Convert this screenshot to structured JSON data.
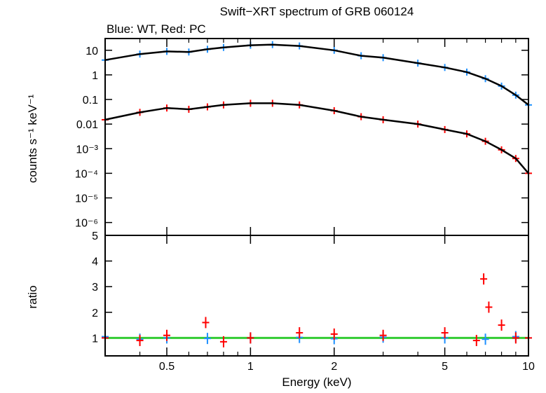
{
  "title": "Swift−XRT spectrum of GRB 060124",
  "subtitle": "Blue: WT, Red: PC",
  "chart_data": [
    {
      "type": "scatter",
      "panel": "spectrum",
      "xlabel": "Energy (keV)",
      "ylabel": "counts s⁻¹ keV⁻¹",
      "xscale": "log",
      "yscale": "log",
      "xlim": [
        0.3,
        10
      ],
      "ylim": [
        3e-07,
        30
      ],
      "ytick_labels": [
        "10",
        "1",
        "0.1",
        "0.01",
        "10⁻³",
        "10⁻⁴",
        "10⁻⁵",
        "10⁻⁶"
      ],
      "ytick_values": [
        10,
        1,
        0.1,
        0.01,
        0.001,
        0.0001,
        1e-05,
        1e-06
      ],
      "series": [
        {
          "name": "WT",
          "color": "#1e90ff",
          "x": [
            0.3,
            0.4,
            0.5,
            0.6,
            0.7,
            0.8,
            1.0,
            1.2,
            1.5,
            2.0,
            2.5,
            3.0,
            4.0,
            5.0,
            6.0,
            7.0,
            8.0,
            9.0,
            10.0
          ],
          "y": [
            4,
            7,
            9,
            8.5,
            11,
            13,
            16,
            17,
            15,
            10,
            6,
            5,
            3,
            2,
            1.3,
            0.7,
            0.35,
            0.15,
            0.06
          ]
        },
        {
          "name": "PC",
          "color": "#ff0000",
          "x": [
            0.3,
            0.4,
            0.5,
            0.6,
            0.7,
            0.8,
            1.0,
            1.2,
            1.5,
            2.0,
            2.5,
            3.0,
            4.0,
            5.0,
            6.0,
            7.0,
            8.0,
            9.0,
            10.0
          ],
          "y": [
            0.015,
            0.03,
            0.045,
            0.04,
            0.05,
            0.06,
            0.07,
            0.07,
            0.06,
            0.035,
            0.02,
            0.015,
            0.01,
            0.006,
            0.004,
            0.002,
            0.0009,
            0.0004,
            0.0001
          ]
        },
        {
          "name": "WT model",
          "color": "#000000",
          "x": [
            0.3,
            0.4,
            0.5,
            0.6,
            0.7,
            0.8,
            1.0,
            1.2,
            1.5,
            2.0,
            2.5,
            3.0,
            4.0,
            5.0,
            6.0,
            7.0,
            8.0,
            9.0,
            10.0
          ],
          "y": [
            4,
            7,
            9,
            8.5,
            11,
            13,
            16,
            17,
            15,
            10,
            6,
            5,
            3,
            2,
            1.3,
            0.7,
            0.35,
            0.15,
            0.06
          ]
        },
        {
          "name": "PC model",
          "color": "#000000",
          "x": [
            0.3,
            0.4,
            0.5,
            0.6,
            0.7,
            0.8,
            1.0,
            1.2,
            1.5,
            2.0,
            2.5,
            3.0,
            4.0,
            5.0,
            6.0,
            7.0,
            8.0,
            9.0,
            10.0
          ],
          "y": [
            0.015,
            0.03,
            0.045,
            0.04,
            0.05,
            0.06,
            0.07,
            0.07,
            0.06,
            0.035,
            0.02,
            0.015,
            0.01,
            0.006,
            0.004,
            0.002,
            0.0009,
            0.0004,
            0.0001
          ]
        }
      ]
    },
    {
      "type": "scatter",
      "panel": "ratio",
      "xlabel": "Energy (keV)",
      "ylabel": "ratio",
      "xscale": "log",
      "xlim": [
        0.3,
        10
      ],
      "ylim": [
        0.3,
        5
      ],
      "xtick_labels": [
        "0.5",
        "1",
        "2",
        "5",
        "10"
      ],
      "xtick_values": [
        0.5,
        1,
        2,
        5,
        10
      ],
      "ytick_values": [
        1,
        2,
        3,
        4,
        5
      ],
      "reference_line": {
        "y": 1,
        "color": "#33cc33"
      },
      "series": [
        {
          "name": "WT",
          "color": "#1e90ff",
          "x": [
            0.3,
            0.4,
            0.5,
            0.7,
            1.0,
            1.5,
            2.0,
            3.0,
            5.0,
            7.0,
            9.0,
            10.0
          ],
          "y": [
            1.05,
            0.95,
            1.0,
            0.98,
            1.0,
            1.02,
            0.97,
            1.03,
            1.0,
            0.95,
            1.05,
            1.0
          ]
        },
        {
          "name": "PC",
          "color": "#ff0000",
          "x": [
            0.3,
            0.4,
            0.5,
            0.69,
            0.8,
            1.0,
            1.5,
            2.0,
            3.0,
            5.0,
            6.5,
            6.9,
            7.2,
            8.0,
            9.0,
            10.0
          ],
          "y": [
            1.0,
            0.9,
            1.1,
            1.6,
            0.85,
            1.0,
            1.2,
            1.15,
            1.1,
            1.2,
            0.9,
            3.3,
            2.2,
            1.5,
            1.0,
            1.0
          ]
        }
      ]
    }
  ]
}
